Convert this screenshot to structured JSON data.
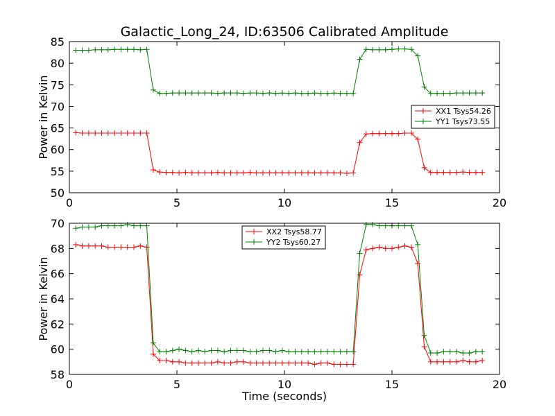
{
  "figure_title": "Galactic_Long_24, ID:63506 Calibrated Amplitude",
  "chart_data": [
    {
      "type": "line",
      "title": "Galactic_Long_24, ID:63506 Calibrated Amplitude",
      "xlabel": "",
      "ylabel": "Power in Kelvin",
      "xlim": [
        0,
        20
      ],
      "ylim": [
        50,
        85
      ],
      "xticks": [
        0,
        5,
        10,
        15,
        20
      ],
      "yticks": [
        50,
        55,
        60,
        65,
        70,
        75,
        80,
        85
      ],
      "grid": false,
      "legend_position": "right",
      "series": [
        {
          "name": "XX1 Tsys54.26",
          "color": "#ff0000",
          "marker": "plus",
          "x": [
            0.3,
            0.6,
            0.9,
            1.2,
            1.5,
            1.8,
            2.1,
            2.4,
            2.7,
            3.0,
            3.3,
            3.6,
            3.9,
            4.2,
            4.5,
            4.8,
            5.1,
            5.4,
            5.7,
            6.0,
            6.3,
            6.6,
            6.9,
            7.2,
            7.5,
            7.8,
            8.1,
            8.4,
            8.7,
            9.0,
            9.3,
            9.6,
            9.9,
            10.2,
            10.5,
            10.8,
            11.1,
            11.4,
            11.7,
            12.0,
            12.3,
            12.6,
            12.9,
            13.2,
            13.5,
            13.8,
            14.1,
            14.4,
            14.7,
            15.0,
            15.3,
            15.6,
            15.9,
            16.2,
            16.5,
            16.8,
            17.1,
            17.4,
            17.7,
            18.0,
            18.3,
            18.6,
            18.9,
            19.2
          ],
          "y": [
            63.9,
            63.8,
            63.8,
            63.8,
            63.8,
            63.8,
            63.8,
            63.8,
            63.8,
            63.8,
            63.8,
            63.8,
            55.3,
            54.8,
            54.7,
            54.7,
            54.6,
            54.7,
            54.6,
            54.6,
            54.6,
            54.6,
            54.7,
            54.6,
            54.6,
            54.6,
            54.6,
            54.7,
            54.6,
            54.6,
            54.6,
            54.6,
            54.6,
            54.6,
            54.6,
            54.6,
            54.6,
            54.6,
            54.6,
            54.6,
            54.6,
            54.6,
            54.5,
            54.6,
            61.6,
            63.6,
            63.7,
            63.7,
            63.7,
            63.7,
            63.7,
            63.8,
            63.8,
            62.4,
            55.8,
            54.7,
            54.7,
            54.7,
            54.7,
            54.7,
            54.8,
            54.7,
            54.7,
            54.7
          ]
        },
        {
          "name": "YY1 Tsys73.55",
          "color": "#008000",
          "marker": "plus",
          "x": [
            0.3,
            0.6,
            0.9,
            1.2,
            1.5,
            1.8,
            2.1,
            2.4,
            2.7,
            3.0,
            3.3,
            3.6,
            3.9,
            4.2,
            4.5,
            4.8,
            5.1,
            5.4,
            5.7,
            6.0,
            6.3,
            6.6,
            6.9,
            7.2,
            7.5,
            7.8,
            8.1,
            8.4,
            8.7,
            9.0,
            9.3,
            9.6,
            9.9,
            10.2,
            10.5,
            10.8,
            11.1,
            11.4,
            11.7,
            12.0,
            12.3,
            12.6,
            12.9,
            13.2,
            13.5,
            13.8,
            14.1,
            14.4,
            14.7,
            15.0,
            15.3,
            15.6,
            15.9,
            16.2,
            16.5,
            16.8,
            17.1,
            17.4,
            17.7,
            18.0,
            18.3,
            18.6,
            18.9,
            19.2
          ],
          "y": [
            83.0,
            83.0,
            83.0,
            83.1,
            83.1,
            83.1,
            83.2,
            83.2,
            83.2,
            83.2,
            83.1,
            83.2,
            73.8,
            73.0,
            73.0,
            73.1,
            73.1,
            73.1,
            73.1,
            73.1,
            73.1,
            73.1,
            73.0,
            73.1,
            73.1,
            73.1,
            73.0,
            73.1,
            73.1,
            73.0,
            73.1,
            73.0,
            73.1,
            73.0,
            73.1,
            73.0,
            73.0,
            73.1,
            73.0,
            73.0,
            73.1,
            73.0,
            73.0,
            73.0,
            80.9,
            83.2,
            83.1,
            83.1,
            83.1,
            83.2,
            83.3,
            83.3,
            83.2,
            81.7,
            74.5,
            73.0,
            73.0,
            73.0,
            73.0,
            73.1,
            73.1,
            73.1,
            73.1,
            73.1
          ]
        }
      ]
    },
    {
      "type": "line",
      "title": "",
      "xlabel": "Time (seconds)",
      "ylabel": "Power in Kelvin",
      "xlim": [
        0,
        20
      ],
      "ylim": [
        58,
        70
      ],
      "xticks": [
        0,
        5,
        10,
        15,
        20
      ],
      "yticks": [
        58,
        60,
        62,
        64,
        66,
        68,
        70
      ],
      "grid": false,
      "legend_position": "top-center",
      "series": [
        {
          "name": "XX2 Tsys58.77",
          "color": "#ff0000",
          "marker": "plus",
          "x": [
            0.3,
            0.6,
            0.9,
            1.2,
            1.5,
            1.8,
            2.1,
            2.4,
            2.7,
            3.0,
            3.3,
            3.6,
            3.9,
            4.2,
            4.5,
            4.8,
            5.1,
            5.4,
            5.7,
            6.0,
            6.3,
            6.6,
            6.9,
            7.2,
            7.5,
            7.8,
            8.1,
            8.4,
            8.7,
            9.0,
            9.3,
            9.6,
            9.9,
            10.2,
            10.5,
            10.8,
            11.1,
            11.4,
            11.7,
            12.0,
            12.3,
            12.6,
            12.9,
            13.2,
            13.5,
            13.8,
            14.1,
            14.4,
            14.7,
            15.0,
            15.3,
            15.6,
            15.9,
            16.2,
            16.5,
            16.8,
            17.1,
            17.4,
            17.7,
            18.0,
            18.3,
            18.6,
            18.9,
            19.2
          ],
          "y": [
            68.3,
            68.2,
            68.2,
            68.2,
            68.2,
            68.1,
            68.1,
            68.1,
            68.1,
            68.1,
            68.2,
            68.1,
            59.6,
            59.1,
            59.1,
            59.0,
            59.0,
            58.9,
            58.9,
            58.9,
            58.9,
            58.9,
            59.0,
            58.9,
            58.9,
            59.0,
            59.0,
            58.9,
            58.9,
            58.9,
            58.9,
            58.9,
            58.9,
            58.9,
            58.9,
            58.9,
            58.9,
            58.8,
            58.9,
            58.9,
            58.8,
            58.8,
            58.8,
            58.8,
            65.9,
            67.9,
            68.0,
            68.1,
            68.0,
            68.0,
            68.1,
            68.2,
            68.1,
            66.8,
            60.2,
            59.0,
            59.0,
            59.0,
            59.0,
            59.0,
            59.1,
            59.0,
            59.0,
            59.1
          ]
        },
        {
          "name": "YY2 Tsys60.27",
          "color": "#008000",
          "marker": "plus",
          "x": [
            0.3,
            0.6,
            0.9,
            1.2,
            1.5,
            1.8,
            2.1,
            2.4,
            2.7,
            3.0,
            3.3,
            3.6,
            3.9,
            4.2,
            4.5,
            4.8,
            5.1,
            5.4,
            5.7,
            6.0,
            6.3,
            6.6,
            6.9,
            7.2,
            7.5,
            7.8,
            8.1,
            8.4,
            8.7,
            9.0,
            9.3,
            9.6,
            9.9,
            10.2,
            10.5,
            10.8,
            11.1,
            11.4,
            11.7,
            12.0,
            12.3,
            12.6,
            12.9,
            13.2,
            13.5,
            13.8,
            14.1,
            14.4,
            14.7,
            15.0,
            15.3,
            15.6,
            15.9,
            16.2,
            16.5,
            16.8,
            17.1,
            17.4,
            17.7,
            18.0,
            18.3,
            18.6,
            18.9,
            19.2
          ],
          "y": [
            69.6,
            69.7,
            69.7,
            69.7,
            69.8,
            69.8,
            69.8,
            69.8,
            69.9,
            69.8,
            69.8,
            69.8,
            60.5,
            59.8,
            59.8,
            59.9,
            60.0,
            59.9,
            59.8,
            59.9,
            59.8,
            59.9,
            59.9,
            59.8,
            59.9,
            59.9,
            59.9,
            59.8,
            59.8,
            59.9,
            59.9,
            59.8,
            59.9,
            59.8,
            59.8,
            59.8,
            59.8,
            59.8,
            59.8,
            59.8,
            59.8,
            59.8,
            59.8,
            59.8,
            67.6,
            69.9,
            69.9,
            69.8,
            69.8,
            69.8,
            69.8,
            69.8,
            69.8,
            68.3,
            61.1,
            59.7,
            59.7,
            59.8,
            59.8,
            59.8,
            59.7,
            59.7,
            59.8,
            59.8
          ]
        }
      ]
    }
  ]
}
